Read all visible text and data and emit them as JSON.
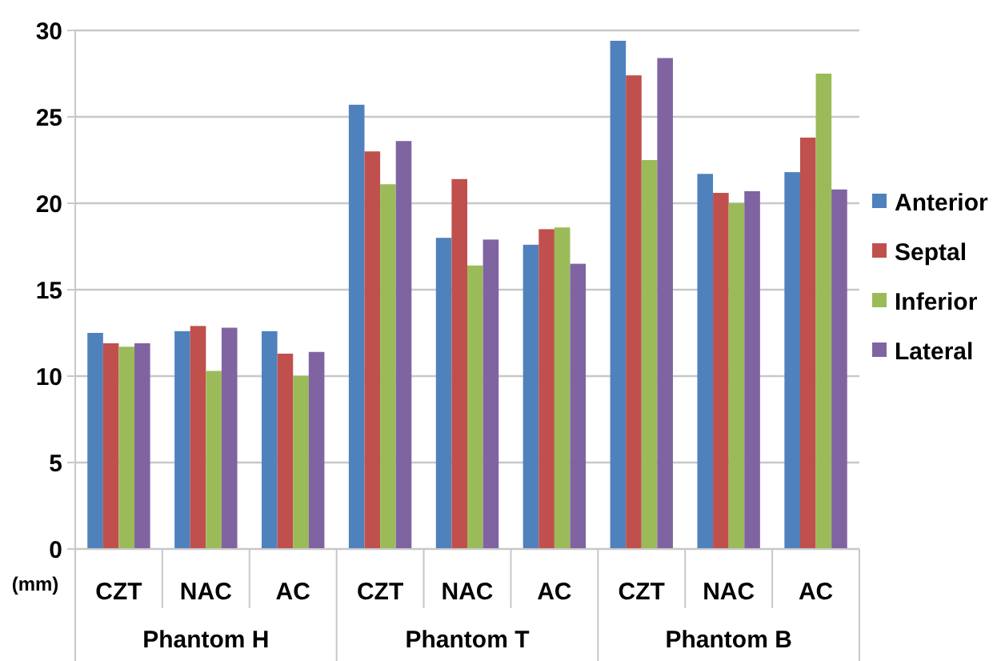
{
  "chart_data": {
    "type": "bar",
    "ylabel": "(mm)",
    "categories": [
      "CZT",
      "NAC",
      "AC",
      "CZT",
      "NAC",
      "AC",
      "CZT",
      "NAC",
      "AC"
    ],
    "annotations": [
      "Phantom H",
      "Phantom T",
      "Phantom B"
    ],
    "series": [
      {
        "name": "Anterior",
        "color": "#4f81bd",
        "values": [
          12.5,
          12.6,
          12.6,
          25.7,
          18.0,
          17.6,
          29.4,
          21.7,
          21.8
        ]
      },
      {
        "name": "Septal",
        "color": "#c0504d",
        "values": [
          11.9,
          12.9,
          11.3,
          23.0,
          21.4,
          18.5,
          27.4,
          20.6,
          23.8
        ]
      },
      {
        "name": "Inferior",
        "color": "#9bbb59",
        "values": [
          11.7,
          10.3,
          10.0,
          21.1,
          16.4,
          18.6,
          22.5,
          20.0,
          27.5
        ]
      },
      {
        "name": "Lateral",
        "color": "#8064a2",
        "values": [
          11.9,
          12.8,
          11.4,
          23.6,
          17.9,
          16.5,
          28.4,
          20.7,
          20.8
        ]
      }
    ],
    "ylim": [
      0,
      30
    ],
    "yticks": [
      0,
      5,
      10,
      15,
      20,
      25,
      30
    ],
    "grid": "y",
    "legend": "right"
  }
}
